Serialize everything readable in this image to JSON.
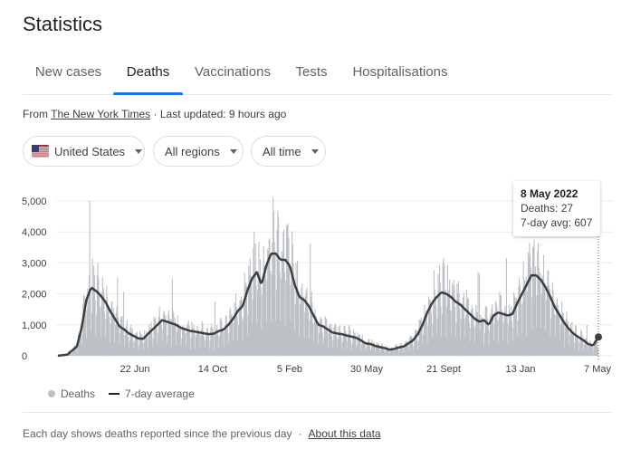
{
  "page": {
    "title": "Statistics"
  },
  "tabs": [
    {
      "label": "New cases",
      "active": false
    },
    {
      "label": "Deaths",
      "active": true
    },
    {
      "label": "Vaccinations",
      "active": false
    },
    {
      "label": "Tests",
      "active": false
    },
    {
      "label": "Hospitalisations",
      "active": false
    }
  ],
  "source": {
    "prefix": "From",
    "link": "The New York Times",
    "updated": "· Last updated: 9 hours ago"
  },
  "filters": {
    "country": "United States",
    "country_icon": "us-flag-icon",
    "region": "All regions",
    "time": "All time"
  },
  "tooltip": {
    "date": "8 May 2022",
    "deaths": "Deaths: 27",
    "avg": "7-day avg: 607"
  },
  "legend": {
    "bars": "Deaths",
    "line": "7-day average"
  },
  "footer": {
    "note": "Each day shows deaths reported since the previous day",
    "separator": "·",
    "link": "About this data"
  },
  "colors": {
    "bars": "#bdc1c6",
    "line": "#3c4043",
    "accent": "#1a73e8"
  },
  "chart_data": {
    "type": "bar",
    "ylim": [
      0,
      5000
    ],
    "yticks": [
      "0",
      "1,000",
      "2,000",
      "3,000",
      "4,000",
      "5,000"
    ],
    "xticks": [
      "22 Jun",
      "14 Oct",
      "5 Feb",
      "30 May",
      "21 Sept",
      "13 Jan",
      "7 May"
    ],
    "series": [
      {
        "name": "Deaths",
        "type": "bar"
      },
      {
        "name": "7-day average",
        "type": "line"
      }
    ],
    "weekly_points": [
      [
        "2020-02-29",
        0
      ],
      [
        "2020-03-14",
        40
      ],
      [
        "2020-03-28",
        300
      ],
      [
        "2020-04-04",
        900
      ],
      [
        "2020-04-11",
        1800
      ],
      [
        "2020-04-18",
        2200
      ],
      [
        "2020-04-25",
        2100
      ],
      [
        "2020-05-02",
        1950
      ],
      [
        "2020-05-09",
        1750
      ],
      [
        "2020-05-16",
        1450
      ],
      [
        "2020-05-23",
        1200
      ],
      [
        "2020-05-30",
        950
      ],
      [
        "2020-06-06",
        850
      ],
      [
        "2020-06-13",
        720
      ],
      [
        "2020-06-20",
        640
      ],
      [
        "2020-06-27",
        560
      ],
      [
        "2020-07-04",
        550
      ],
      [
        "2020-07-11",
        700
      ],
      [
        "2020-07-18",
        850
      ],
      [
        "2020-07-25",
        1000
      ],
      [
        "2020-08-01",
        1150
      ],
      [
        "2020-08-08",
        1100
      ],
      [
        "2020-08-15",
        1050
      ],
      [
        "2020-08-22",
        1000
      ],
      [
        "2020-08-29",
        900
      ],
      [
        "2020-09-05",
        850
      ],
      [
        "2020-09-12",
        800
      ],
      [
        "2020-09-19",
        780
      ],
      [
        "2020-09-26",
        750
      ],
      [
        "2020-10-03",
        720
      ],
      [
        "2020-10-10",
        700
      ],
      [
        "2020-10-17",
        720
      ],
      [
        "2020-10-24",
        800
      ],
      [
        "2020-10-31",
        850
      ],
      [
        "2020-11-07",
        1000
      ],
      [
        "2020-11-14",
        1200
      ],
      [
        "2020-11-21",
        1450
      ],
      [
        "2020-11-28",
        1600
      ],
      [
        "2020-12-05",
        2100
      ],
      [
        "2020-12-12",
        2500
      ],
      [
        "2020-12-19",
        2700
      ],
      [
        "2020-12-26",
        2300
      ],
      [
        "2021-01-02",
        2900
      ],
      [
        "2021-01-09",
        3300
      ],
      [
        "2021-01-16",
        3300
      ],
      [
        "2021-01-23",
        3100
      ],
      [
        "2021-01-30",
        3100
      ],
      [
        "2021-02-06",
        2900
      ],
      [
        "2021-02-13",
        2300
      ],
      [
        "2021-02-20",
        1900
      ],
      [
        "2021-02-27",
        1800
      ],
      [
        "2021-03-06",
        1600
      ],
      [
        "2021-03-13",
        1300
      ],
      [
        "2021-03-20",
        1000
      ],
      [
        "2021-03-27",
        950
      ],
      [
        "2021-04-03",
        850
      ],
      [
        "2021-04-10",
        750
      ],
      [
        "2021-04-17",
        720
      ],
      [
        "2021-04-24",
        700
      ],
      [
        "2021-05-01",
        650
      ],
      [
        "2021-05-08",
        620
      ],
      [
        "2021-05-15",
        580
      ],
      [
        "2021-05-22",
        500
      ],
      [
        "2021-05-29",
        400
      ],
      [
        "2021-06-05",
        380
      ],
      [
        "2021-06-12",
        320
      ],
      [
        "2021-06-19",
        280
      ],
      [
        "2021-06-26",
        250
      ],
      [
        "2021-07-03",
        200
      ],
      [
        "2021-07-10",
        220
      ],
      [
        "2021-07-17",
        270
      ],
      [
        "2021-07-24",
        300
      ],
      [
        "2021-07-31",
        400
      ],
      [
        "2021-08-07",
        500
      ],
      [
        "2021-08-14",
        700
      ],
      [
        "2021-08-21",
        1000
      ],
      [
        "2021-08-28",
        1400
      ],
      [
        "2021-09-04",
        1700
      ],
      [
        "2021-09-11",
        1900
      ],
      [
        "2021-09-18",
        2050
      ],
      [
        "2021-09-25",
        2000
      ],
      [
        "2021-10-02",
        1900
      ],
      [
        "2021-10-09",
        1750
      ],
      [
        "2021-10-16",
        1650
      ],
      [
        "2021-10-23",
        1500
      ],
      [
        "2021-10-30",
        1350
      ],
      [
        "2021-11-06",
        1200
      ],
      [
        "2021-11-13",
        1100
      ],
      [
        "2021-11-20",
        1150
      ],
      [
        "2021-11-27",
        1000
      ],
      [
        "2021-12-04",
        1300
      ],
      [
        "2021-12-11",
        1400
      ],
      [
        "2021-12-18",
        1350
      ],
      [
        "2021-12-25",
        1300
      ],
      [
        "2022-01-01",
        1350
      ],
      [
        "2022-01-08",
        1700
      ],
      [
        "2022-01-15",
        2000
      ],
      [
        "2022-01-22",
        2300
      ],
      [
        "2022-01-29",
        2600
      ],
      [
        "2022-02-05",
        2600
      ],
      [
        "2022-02-12",
        2450
      ],
      [
        "2022-02-19",
        2200
      ],
      [
        "2022-02-26",
        1900
      ],
      [
        "2022-03-05",
        1550
      ],
      [
        "2022-03-12",
        1300
      ],
      [
        "2022-03-19",
        1050
      ],
      [
        "2022-03-26",
        850
      ],
      [
        "2022-04-02",
        700
      ],
      [
        "2022-04-09",
        600
      ],
      [
        "2022-04-16",
        500
      ],
      [
        "2022-04-23",
        380
      ],
      [
        "2022-04-30",
        330
      ],
      [
        "2022-05-08",
        607
      ]
    ],
    "highlight_point": {
      "date": "2022-05-08",
      "deaths": 27,
      "avg": 607
    }
  }
}
